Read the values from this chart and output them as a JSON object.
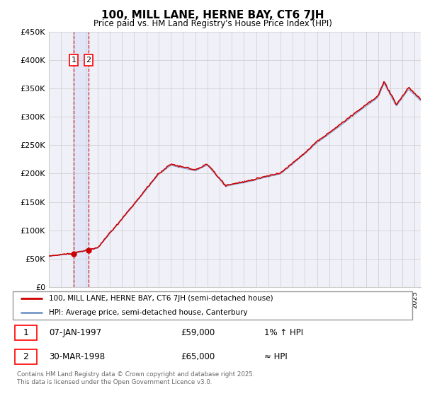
{
  "title": "100, MILL LANE, HERNE BAY, CT6 7JH",
  "subtitle": "Price paid vs. HM Land Registry's House Price Index (HPI)",
  "sale_dates": [
    "07-JAN-1997",
    "30-MAR-1998"
  ],
  "sale_prices": [
    "£59,000",
    "£65,000"
  ],
  "sale_hpi_notes": [
    "1% ↑ HPI",
    "≈ HPI"
  ],
  "ylim": [
    0,
    450000
  ],
  "yticks": [
    0,
    50000,
    100000,
    150000,
    200000,
    250000,
    300000,
    350000,
    400000,
    450000
  ],
  "line_color": "#cc0000",
  "hpi_color": "#7799cc",
  "background_color": "#ffffff",
  "plot_bg_color": "#f0f0f8",
  "grid_color": "#cccccc",
  "legend_line1": "100, MILL LANE, HERNE BAY, CT6 7JH (semi-detached house)",
  "legend_line2": "HPI: Average price, semi-detached house, Canterbury",
  "footer": "Contains HM Land Registry data © Crown copyright and database right 2025.\nThis data is licensed under the Open Government Licence v3.0.",
  "sale1_x": 1997.03,
  "sale1_y": 59000,
  "sale2_x": 1998.25,
  "sale2_y": 65000,
  "xmin": 1995,
  "xmax": 2025.5
}
